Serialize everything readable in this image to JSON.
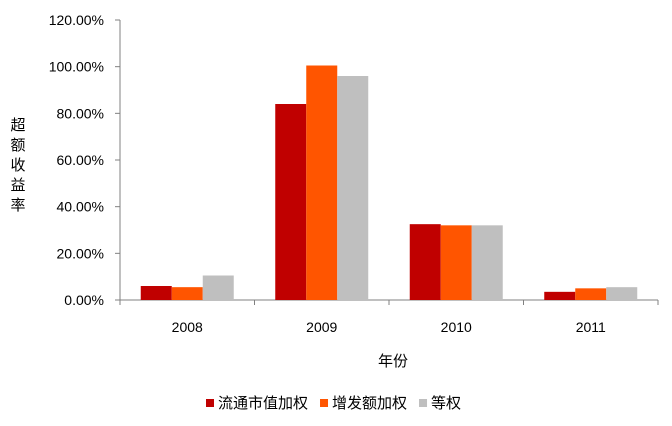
{
  "chart_data": {
    "type": "bar",
    "title": "",
    "xlabel": "年份",
    "ylabel": "超额收益率",
    "categories": [
      "2008",
      "2009",
      "2010",
      "2011"
    ],
    "series": [
      {
        "name": "流通市值加权",
        "color": "#c00000",
        "values": [
          6.0,
          84.0,
          32.5,
          3.5
        ]
      },
      {
        "name": "增发额加权",
        "color": "#ff5500",
        "values": [
          5.5,
          100.5,
          32.0,
          5.0
        ]
      },
      {
        "name": "等权",
        "color": "#bfbfbf",
        "values": [
          10.5,
          96.0,
          32.0,
          5.5
        ]
      }
    ],
    "ylim": [
      0,
      120
    ],
    "yticks": [
      "0.00%",
      "20.00%",
      "40.00%",
      "60.00%",
      "80.00%",
      "100.00%",
      "120.00%"
    ],
    "grid": false,
    "legend_position": "bottom"
  }
}
